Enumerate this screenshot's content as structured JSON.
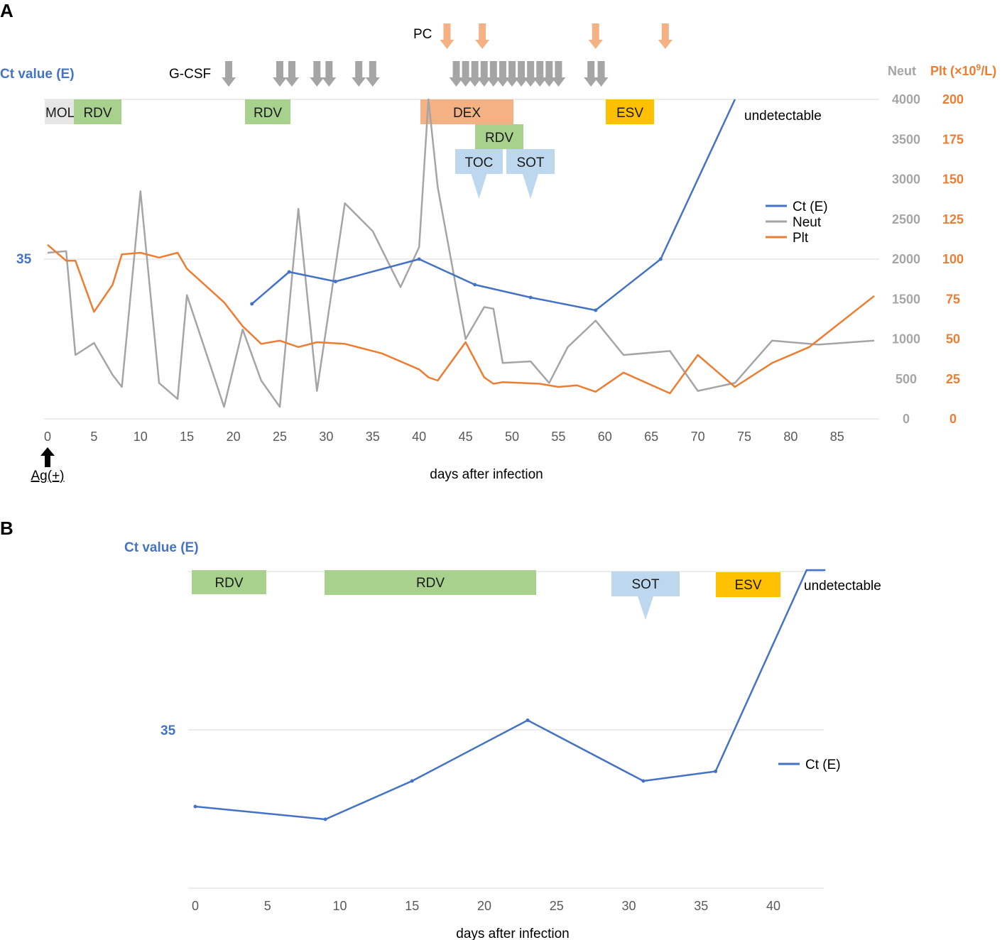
{
  "panels": {
    "a": "A",
    "b": "B"
  },
  "colors": {
    "ct": "#4472c4",
    "neut": "#a5a5a5",
    "plt": "#ed7d31",
    "grid": "#d9d9d9",
    "rdv": "#a9d18e",
    "mol": "#e7e6e6",
    "dex": "#f4b183",
    "toc_sot": "#bdd7ee",
    "esv": "#ffc000",
    "pc_arrow": "#f4b183",
    "gcsf_arrow": "#a5a5a5"
  },
  "chart_data": [
    {
      "type": "line",
      "panel": "A",
      "xlabel": "days after infection",
      "x_ticks": [
        "0",
        "5",
        "10",
        "15",
        "20",
        "25",
        "30",
        "35",
        "40",
        "45",
        "50",
        "55",
        "60",
        "65",
        "70",
        "75",
        "80",
        "85"
      ],
      "xlim": [
        0,
        90
      ],
      "left_axis": {
        "title": "Ct value (E)",
        "tick_label": "35",
        "top_label": "undetectable"
      },
      "right_axis_neut": {
        "title": "Neut",
        "ticks": [
          "4000",
          "3500",
          "3000",
          "2500",
          "2000",
          "1500",
          "1000",
          "500",
          "0"
        ],
        "ylim": [
          0,
          4000
        ]
      },
      "right_axis_plt": {
        "title_prefix": "Plt (×10",
        "title_sup": "9",
        "title_suffix": "/L)",
        "ticks": [
          "200",
          "175",
          "150",
          "125",
          "100",
          "75",
          "50",
          "25",
          "0"
        ],
        "ylim": [
          0,
          200
        ]
      },
      "legend": [
        "Ct (E)",
        "Neut",
        "Plt"
      ],
      "series": [
        {
          "name": "Ct (E)",
          "x": [
            22,
            26,
            31,
            40,
            46,
            52,
            59,
            66,
            74
          ],
          "y": [
            33.6,
            34.6,
            34.3,
            35.0,
            34.2,
            33.8,
            33.4,
            35.0,
            40.0
          ]
        },
        {
          "name": "Neut",
          "x": [
            0,
            2,
            3,
            5,
            7,
            8,
            10,
            12,
            14,
            15,
            19,
            21,
            23,
            25,
            27,
            29,
            32,
            35,
            38,
            40,
            41,
            42,
            45,
            47,
            48,
            49,
            52,
            54,
            56,
            59,
            62,
            67,
            70,
            74,
            78,
            83,
            89
          ],
          "y": [
            2080,
            2100,
            800,
            950,
            550,
            400,
            2850,
            450,
            250,
            1550,
            150,
            1120,
            480,
            150,
            2630,
            350,
            2700,
            2350,
            1650,
            2150,
            4000,
            2900,
            1000,
            1400,
            1380,
            700,
            720,
            450,
            900,
            1230,
            800,
            850,
            350,
            450,
            980,
            930,
            980
          ]
        },
        {
          "name": "Plt",
          "x": [
            0,
            2,
            3,
            5,
            7,
            8,
            10,
            12,
            14,
            15,
            19,
            21,
            23,
            25,
            27,
            29,
            32,
            36,
            40,
            41,
            42,
            45,
            47,
            48,
            49,
            53,
            55,
            57,
            59,
            62,
            67,
            70,
            74,
            78,
            82,
            89
          ],
          "y": [
            109,
            99,
            99,
            67,
            84,
            103,
            104,
            101,
            104,
            94,
            73,
            58,
            47,
            49,
            45,
            48,
            47,
            41,
            31,
            26,
            24,
            48,
            26,
            22,
            23,
            22,
            20,
            21,
            17,
            29,
            16,
            40,
            20,
            35,
            45,
            77
          ]
        }
      ],
      "bars": [
        {
          "label": "MOL",
          "kind": "mol"
        },
        {
          "label": "RDV",
          "kind": "rdv"
        },
        {
          "label": "RDV",
          "kind": "rdv"
        },
        {
          "label": "DEX",
          "kind": "dex"
        },
        {
          "label": "RDV",
          "kind": "rdv"
        },
        {
          "label": "TOC",
          "kind": "toc_sot"
        },
        {
          "label": "SOT",
          "kind": "toc_sot"
        },
        {
          "label": "ESV",
          "kind": "esv"
        }
      ],
      "annotations": {
        "gcsf": "G-CSF",
        "pc": "PC",
        "ag": "Ag(+)"
      },
      "gcsf_days": [
        19.5,
        25,
        26.3,
        29,
        30.3,
        33.5,
        35,
        44,
        45,
        46,
        47,
        48,
        49,
        50,
        51,
        52,
        53,
        54,
        55,
        58.5,
        59.6
      ],
      "pc_days": [
        43,
        46.8,
        59,
        66.5
      ],
      "ag_day": 0
    },
    {
      "type": "line",
      "panel": "B",
      "xlabel": "days after infection",
      "x_ticks": [
        "0",
        "5",
        "10",
        "15",
        "20",
        "25",
        "30",
        "35",
        "40"
      ],
      "xlim": [
        0,
        43
      ],
      "left_axis": {
        "title": "Ct value (E)",
        "tick_label": "35",
        "top_label": "undetectable"
      },
      "legend": [
        "Ct (E)"
      ],
      "series": [
        {
          "name": "Ct (E)",
          "x": [
            0,
            9,
            15,
            23,
            31,
            36,
            42.3,
            43.6
          ],
          "y": [
            32.6,
            32.2,
            33.4,
            35.3,
            33.4,
            33.7,
            40.0,
            40.0
          ]
        }
      ],
      "bars": [
        {
          "label": "RDV",
          "kind": "rdv"
        },
        {
          "label": "RDV",
          "kind": "rdv"
        },
        {
          "label": "SOT",
          "kind": "toc_sot"
        },
        {
          "label": "ESV",
          "kind": "esv"
        }
      ]
    }
  ]
}
